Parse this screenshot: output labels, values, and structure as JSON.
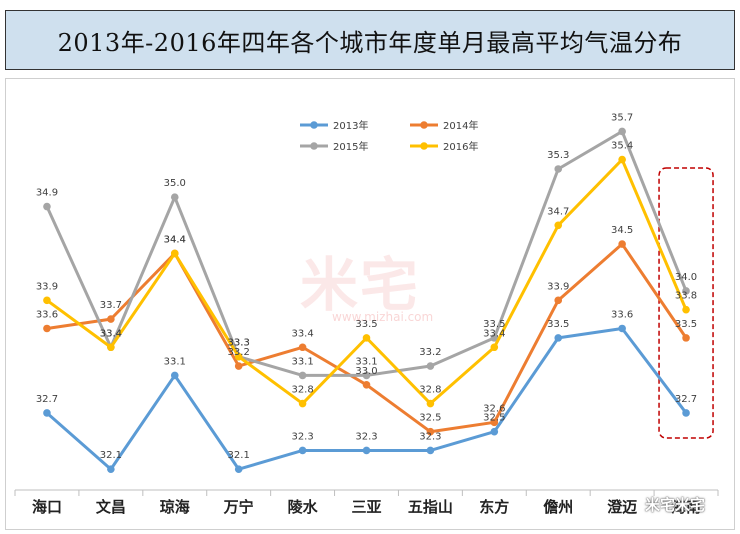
{
  "chart_data": {
    "type": "line",
    "title": "2013年-2016年四年各个城市年度单月最高平均气温分布",
    "categories": [
      "海口",
      "文昌",
      "琼海",
      "万宁",
      "陵水",
      "三亚",
      "五指山",
      "东方",
      "儋州",
      "澄迈",
      "海南"
    ],
    "series": [
      {
        "name": "2013年",
        "color": "#5b9bd5",
        "values": [
          32.7,
          32.1,
          33.1,
          32.1,
          32.3,
          32.3,
          32.3,
          32.5,
          33.5,
          33.6,
          32.7
        ]
      },
      {
        "name": "2014年",
        "color": "#ed7d31",
        "values": [
          33.6,
          33.7,
          34.4,
          33.2,
          33.4,
          33.0,
          32.5,
          32.6,
          33.9,
          34.5,
          33.5
        ]
      },
      {
        "name": "2015年",
        "color": "#a5a5a5",
        "values": [
          34.9,
          33.4,
          35.0,
          33.3,
          33.1,
          33.1,
          33.2,
          33.5,
          35.3,
          35.7,
          34.0
        ]
      },
      {
        "name": "2016年",
        "color": "#ffc000",
        "values": [
          33.9,
          33.4,
          34.4,
          33.3,
          32.8,
          33.5,
          32.8,
          33.4,
          34.7,
          35.4,
          33.8
        ]
      }
    ],
    "ylim": [
      31.9,
      35.95
    ],
    "grid": false,
    "legend_position": "top-center",
    "highlight_category": "海南",
    "highlight_color": "#c00000"
  },
  "watermark": {
    "main": "米宅",
    "url": "www.mizhai.com",
    "corner": "米宅米宅"
  }
}
